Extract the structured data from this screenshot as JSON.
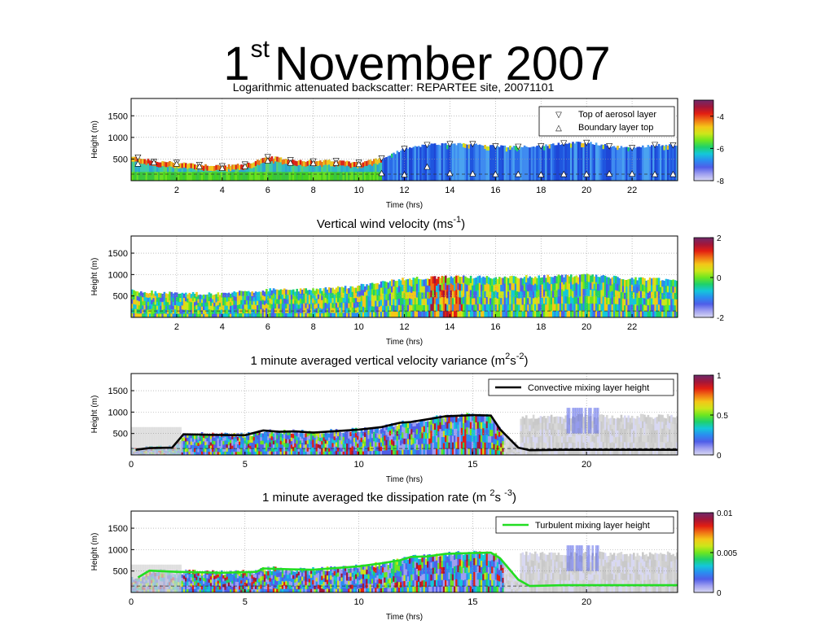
{
  "slide": {
    "title_main": "1",
    "title_sup": "st",
    "title_rest": "November 2007"
  },
  "colormap": [
    "#d8d8f2",
    "#9f9ff0",
    "#4f5ee8",
    "#2a8df0",
    "#14c7d9",
    "#1fd16a",
    "#6ee61f",
    "#cde61a",
    "#f4c718",
    "#f07415",
    "#e21e12",
    "#a2163a",
    "#6e2a6b"
  ],
  "chart_data": [
    {
      "type": "heatmap",
      "title": "Logarithmic attenuated backscatter: REPARTEE site, 20071101",
      "xlabel": "Time (hrs)",
      "ylabel": "Height (m)",
      "xlim": [
        0,
        24
      ],
      "ylim": [
        0,
        1900
      ],
      "xticks": [
        2,
        4,
        6,
        8,
        10,
        12,
        14,
        16,
        18,
        20,
        22
      ],
      "yticks": [
        500,
        1000,
        1500
      ],
      "colorbar": {
        "range": [
          -8,
          -3.2
        ],
        "ticks": [
          -4,
          -6,
          -8
        ]
      },
      "legend": {
        "position": "top-right",
        "entries": [
          {
            "symbol": "▽",
            "label": "Top of aerosol layer"
          },
          {
            "symbol": "△",
            "label": "Boundary layer top"
          }
        ]
      },
      "series": [
        {
          "name": "Top of aerosol layer",
          "x": [
            0.3,
            1,
            2,
            3,
            4,
            5,
            6,
            7,
            8,
            9,
            10,
            11,
            12,
            13,
            14,
            15,
            16,
            17,
            18,
            19,
            20,
            21,
            22,
            23,
            23.8
          ],
          "y": [
            540,
            440,
            420,
            370,
            340,
            380,
            550,
            480,
            450,
            460,
            420,
            520,
            740,
            830,
            850,
            850,
            800,
            790,
            800,
            870,
            880,
            800,
            760,
            830,
            820
          ]
        },
        {
          "name": "Boundary layer top",
          "x": [
            0.3,
            1,
            2,
            3,
            4,
            5,
            6,
            7,
            8,
            9,
            10,
            11,
            12,
            13,
            14,
            15,
            16,
            17,
            18,
            19,
            20,
            21,
            22,
            23,
            23.8
          ],
          "y": [
            390,
            420,
            390,
            330,
            290,
            330,
            460,
            410,
            400,
            410,
            380,
            170,
            140,
            320,
            170,
            160,
            150,
            150,
            140,
            150,
            150,
            160,
            160,
            150,
            150
          ]
        }
      ]
    },
    {
      "type": "heatmap",
      "title_main": "Vertical wind velocity (ms",
      "title_sup": "-1",
      "title_end": ")",
      "xlabel": "Time (hrs)",
      "ylabel": "Height (m)",
      "xlim": [
        0,
        24
      ],
      "ylim": [
        0,
        1900
      ],
      "xticks": [
        2,
        4,
        6,
        8,
        10,
        12,
        14,
        16,
        18,
        20,
        22
      ],
      "yticks": [
        500,
        1000,
        1500
      ],
      "colorbar": {
        "range": [
          -2,
          2
        ],
        "ticks": [
          2,
          0,
          -2
        ]
      },
      "top_of_data": {
        "x": [
          0,
          2,
          4,
          6,
          8,
          10,
          12,
          14,
          16,
          18,
          20,
          22,
          24
        ],
        "y": [
          620,
          560,
          560,
          640,
          640,
          740,
          900,
          950,
          930,
          960,
          980,
          900,
          880
        ]
      }
    },
    {
      "type": "heatmap",
      "title_main": "1 minute averaged vertical velocity variance (m",
      "title_sup1": "2",
      "title_mid": "s",
      "title_sup2": "-2",
      "title_end": ")",
      "xlabel": "Time (hrs)",
      "ylabel": "Height (m)",
      "xlim": [
        0,
        24
      ],
      "ylim": [
        0,
        1900
      ],
      "xticks": [
        0,
        5,
        10,
        15,
        20
      ],
      "yticks": [
        500,
        1000,
        1500
      ],
      "colorbar": {
        "range": [
          0,
          1
        ],
        "ticks": [
          1,
          0.5,
          0
        ]
      },
      "legend": {
        "position": "top-right",
        "entries": [
          {
            "label": "Convective mixing layer height",
            "color": "#000000"
          }
        ]
      },
      "series": [
        {
          "name": "Convective mixing layer height",
          "x": [
            0.2,
            0.8,
            1.8,
            2.3,
            3.5,
            5,
            5.8,
            6.5,
            7.2,
            8,
            10,
            11,
            11.8,
            12.3,
            13,
            13.8,
            15,
            15.8,
            16.2,
            17,
            17.5,
            19,
            21,
            24
          ],
          "y": [
            120,
            160,
            170,
            480,
            470,
            460,
            570,
            540,
            550,
            520,
            590,
            650,
            750,
            770,
            830,
            900,
            930,
            920,
            600,
            170,
            110,
            120,
            120,
            120
          ]
        }
      ]
    },
    {
      "type": "heatmap",
      "title_main": "1 minute averaged tke dissipation rate (m ",
      "title_sup1": "2",
      "title_mid": "s ",
      "title_sup2": "-3",
      "title_end": ")",
      "xlabel": "Time (hrs)",
      "ylabel": "Height (m)",
      "xlim": [
        0,
        24
      ],
      "ylim": [
        0,
        1900
      ],
      "xticks": [
        0,
        5,
        10,
        15,
        20
      ],
      "yticks": [
        500,
        1000,
        1500
      ],
      "colorbar": {
        "range": [
          0,
          0.01
        ],
        "ticks": [
          0.01,
          0.005,
          0
        ]
      },
      "legend": {
        "position": "top-right",
        "entries": [
          {
            "label": "Turbulent mixing layer height",
            "color": "#22dd22"
          }
        ]
      },
      "series": [
        {
          "name": "Turbulent mixing layer height",
          "x": [
            0.3,
            0.8,
            2,
            4,
            5.5,
            5.8,
            7,
            8,
            10,
            11,
            11.8,
            12.3,
            13,
            13.8,
            15,
            15.8,
            16.2,
            17,
            17.5,
            19,
            21,
            24
          ],
          "y": [
            350,
            510,
            480,
            460,
            480,
            560,
            540,
            530,
            610,
            680,
            750,
            830,
            840,
            900,
            920,
            930,
            800,
            300,
            150,
            170,
            170,
            170
          ]
        }
      ]
    }
  ]
}
